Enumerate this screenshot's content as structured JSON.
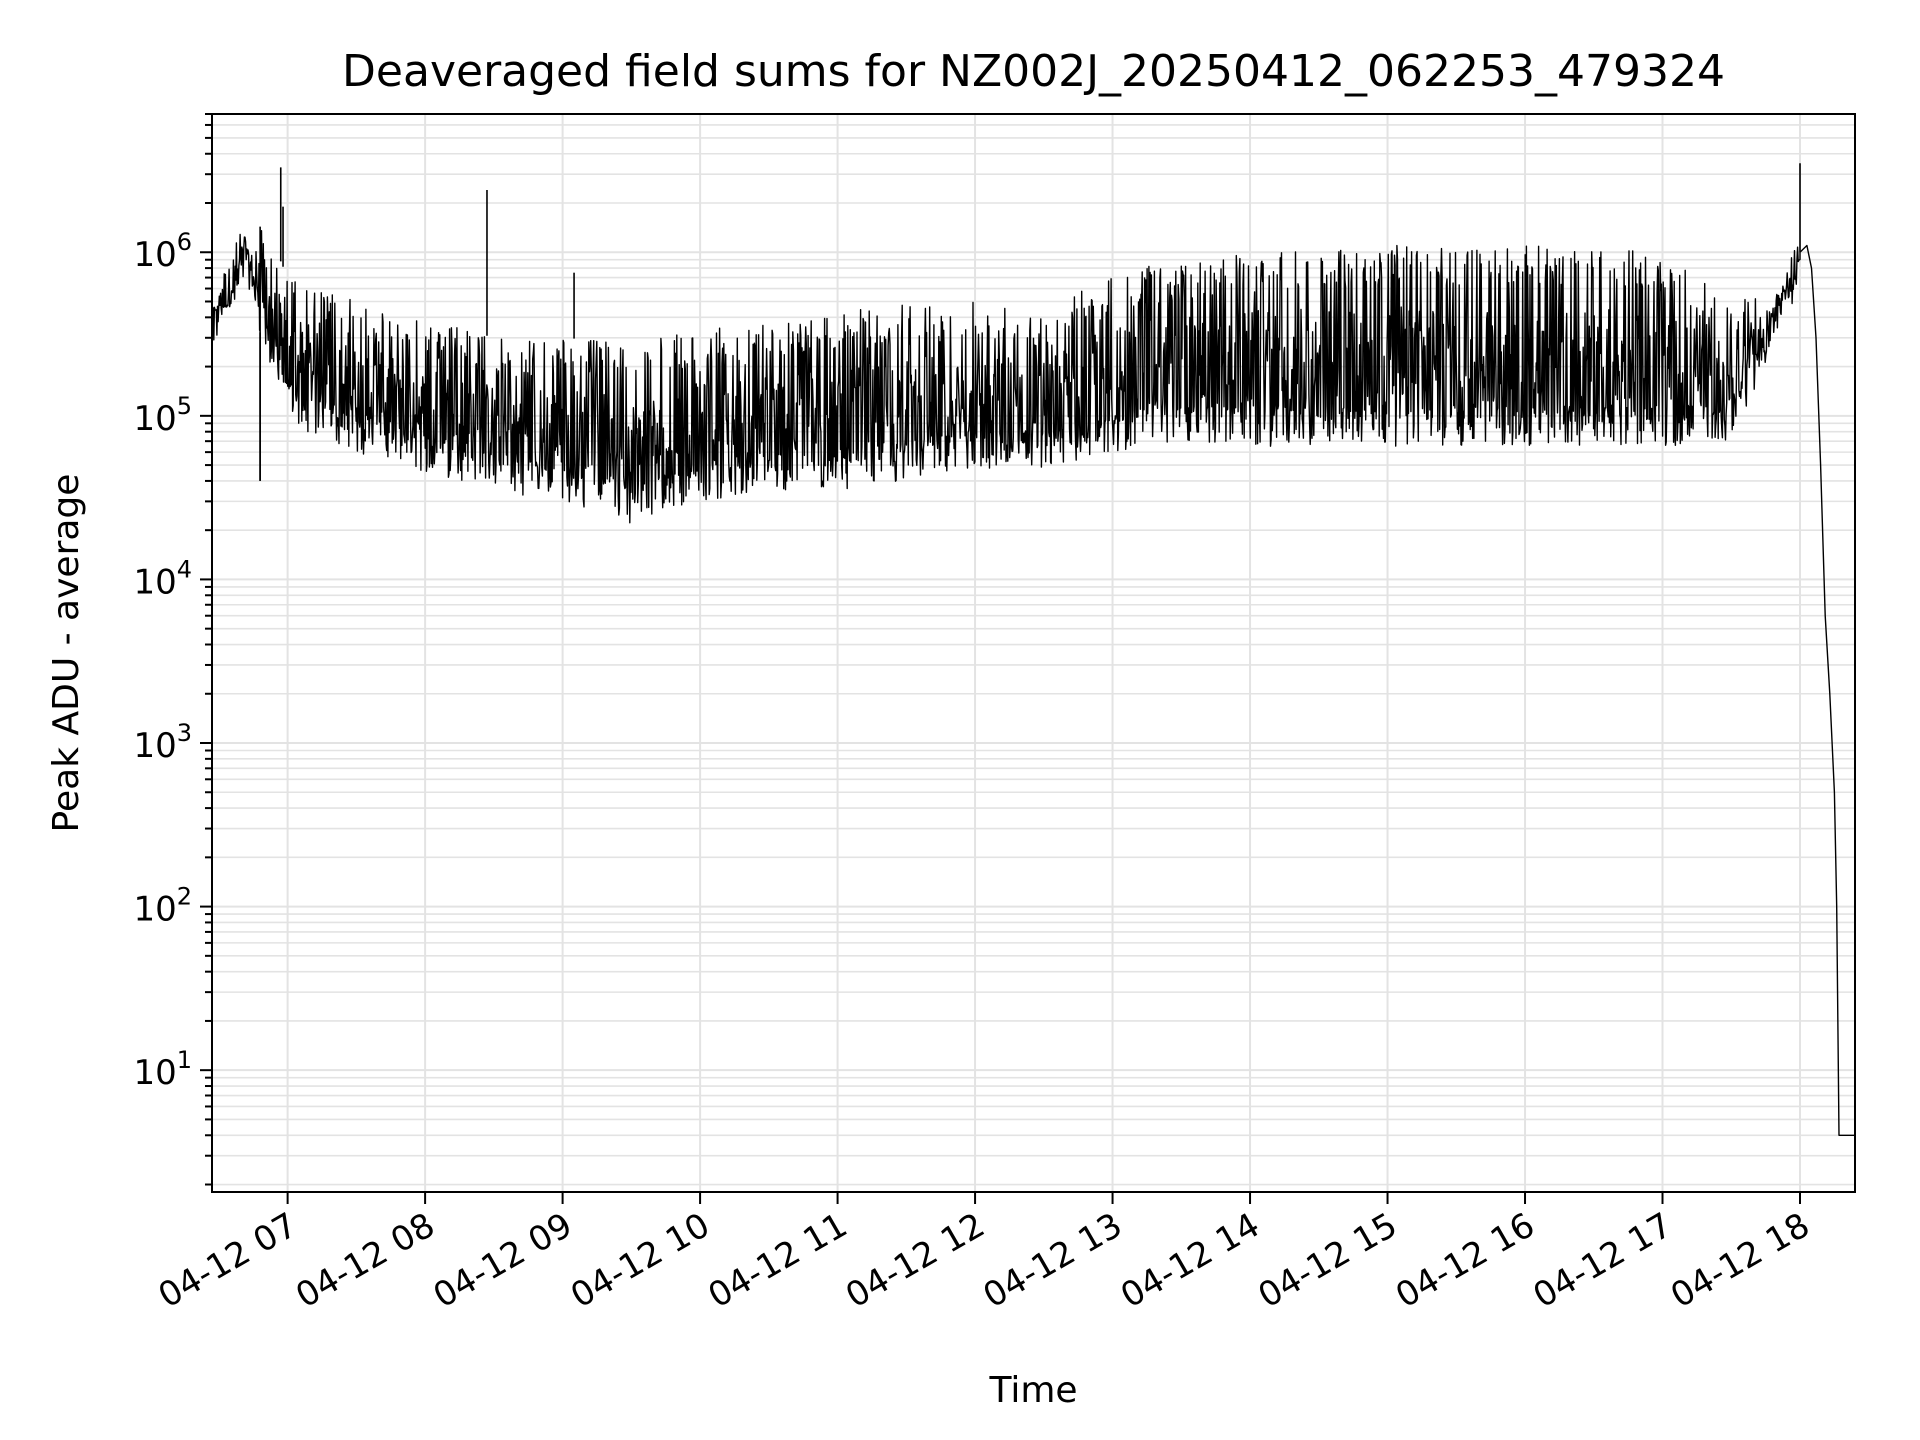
{
  "chart_data": {
    "type": "line",
    "title": "Deaveraged field sums for NZ002J_20250412_062253_479324",
    "xlabel": "Time",
    "ylabel": "Peak ADU - average",
    "y_scale": "log",
    "ylim": [
      1.8,
      7000000
    ],
    "xlim": [
      "2025-04-12 06:27",
      "2025-04-12 18:24"
    ],
    "x_ticks": [
      {
        "value": "2025-04-12 07:00",
        "label": "04-12 07"
      },
      {
        "value": "2025-04-12 08:00",
        "label": "04-12 08"
      },
      {
        "value": "2025-04-12 09:00",
        "label": "04-12 09"
      },
      {
        "value": "2025-04-12 10:00",
        "label": "04-12 10"
      },
      {
        "value": "2025-04-12 11:00",
        "label": "04-12 11"
      },
      {
        "value": "2025-04-12 12:00",
        "label": "04-12 12"
      },
      {
        "value": "2025-04-12 13:00",
        "label": "04-12 13"
      },
      {
        "value": "2025-04-12 14:00",
        "label": "04-12 14"
      },
      {
        "value": "2025-04-12 15:00",
        "label": "04-12 15"
      },
      {
        "value": "2025-04-12 16:00",
        "label": "04-12 16"
      },
      {
        "value": "2025-04-12 17:00",
        "label": "04-12 17"
      },
      {
        "value": "2025-04-12 18:00",
        "label": "04-12 18"
      }
    ],
    "y_ticks": [
      {
        "value": 10,
        "base": "10",
        "exp": "1"
      },
      {
        "value": 100,
        "base": "10",
        "exp": "2"
      },
      {
        "value": 1000,
        "base": "10",
        "exp": "3"
      },
      {
        "value": 10000,
        "base": "10",
        "exp": "4"
      },
      {
        "value": 100000,
        "base": "10",
        "exp": "5"
      },
      {
        "value": 1000000,
        "base": "10",
        "exp": "6"
      }
    ],
    "grid": true,
    "series": [
      {
        "color": "#000000",
        "envelope": [
          {
            "x": "2025-04-12 06:27",
            "base": 420000,
            "peak": 480000
          },
          {
            "x": "2025-04-12 06:35",
            "base": 460000,
            "peak": 520000
          },
          {
            "x": "2025-04-12 06:40",
            "base": 900000,
            "peak": 1200000
          },
          {
            "x": "2025-04-12 06:50",
            "base": 250000,
            "peak": 1500000
          },
          {
            "x": "2025-04-12 07:00",
            "base": 90000,
            "peak": 700000
          },
          {
            "x": "2025-04-12 07:30",
            "base": 60000,
            "peak": 500000
          },
          {
            "x": "2025-04-12 08:00",
            "base": 45000,
            "peak": 400000
          },
          {
            "x": "2025-04-12 08:30",
            "base": 35000,
            "peak": 300000
          },
          {
            "x": "2025-04-12 09:00",
            "base": 30000,
            "peak": 300000
          },
          {
            "x": "2025-04-12 09:30",
            "base": 22000,
            "peak": 280000
          },
          {
            "x": "2025-04-12 10:00",
            "base": 30000,
            "peak": 330000
          },
          {
            "x": "2025-04-12 10:30",
            "base": 35000,
            "peak": 380000
          },
          {
            "x": "2025-04-12 11:00",
            "base": 35000,
            "peak": 430000
          },
          {
            "x": "2025-04-12 11:30",
            "base": 40000,
            "peak": 480000
          },
          {
            "x": "2025-04-12 12:00",
            "base": 45000,
            "peak": 520000
          },
          {
            "x": "2025-04-12 12:30",
            "base": 45000,
            "peak": 450000
          },
          {
            "x": "2025-04-12 13:00",
            "base": 60000,
            "peak": 750000
          },
          {
            "x": "2025-04-12 13:30",
            "base": 70000,
            "peak": 900000
          },
          {
            "x": "2025-04-12 14:00",
            "base": 65000,
            "peak": 1000000
          },
          {
            "x": "2025-04-12 15:00",
            "base": 65000,
            "peak": 1100000
          },
          {
            "x": "2025-04-12 16:00",
            "base": 65000,
            "peak": 1100000
          },
          {
            "x": "2025-04-12 17:00",
            "base": 65000,
            "peak": 1000000
          },
          {
            "x": "2025-04-12 17:30",
            "base": 70000,
            "peak": 500000
          },
          {
            "x": "2025-04-12 17:50",
            "base": 300000,
            "peak": 600000
          },
          {
            "x": "2025-04-12 18:00",
            "base": 800000,
            "peak": 1000000
          }
        ],
        "spikes": [
          {
            "x": "2025-04-12 06:57",
            "y": 3300000
          },
          {
            "x": "2025-04-12 06:58",
            "y": 1900000
          },
          {
            "x": "2025-04-12 06:48",
            "y": 40000
          },
          {
            "x": "2025-04-12 08:27",
            "y": 2400000
          },
          {
            "x": "2025-04-12 09:05",
            "y": 750000
          },
          {
            "x": "2025-04-12 18:00",
            "y": 3500000
          }
        ],
        "tail": [
          {
            "x": "2025-04-12 18:00",
            "y": 1000000
          },
          {
            "x": "2025-04-12 18:03",
            "y": 1100000
          },
          {
            "x": "2025-04-12 18:05",
            "y": 800000
          },
          {
            "x": "2025-04-12 18:07",
            "y": 300000
          },
          {
            "x": "2025-04-12 18:09",
            "y": 50000
          },
          {
            "x": "2025-04-12 18:11",
            "y": 6000
          },
          {
            "x": "2025-04-12 18:13",
            "y": 2000
          },
          {
            "x": "2025-04-12 18:15",
            "y": 500
          },
          {
            "x": "2025-04-12 18:16",
            "y": 100
          },
          {
            "x": "2025-04-12 18:17",
            "y": 4
          },
          {
            "x": "2025-04-12 18:24",
            "y": 4
          }
        ]
      }
    ]
  }
}
